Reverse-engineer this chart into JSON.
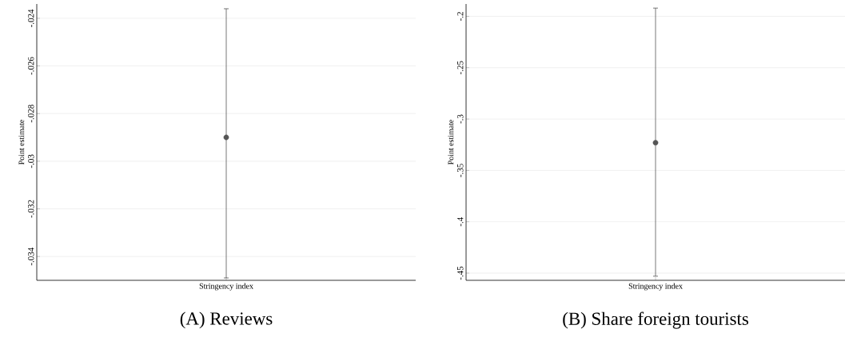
{
  "chart_data": [
    {
      "type": "scatter",
      "title": "(A) Reviews",
      "ylabel": "Point estimate",
      "categories": [
        "Stringency index"
      ],
      "values": [
        -0.029
      ],
      "errors": [
        [
          -0.0349,
          -0.0236
        ]
      ],
      "color": "#555555",
      "marker": "circle",
      "grid": "y",
      "ylim": [
        -0.035,
        -0.0234
      ],
      "yticks": [
        {
          "value": -0.034,
          "label": "-.034"
        },
        {
          "value": -0.032,
          "label": "-.032"
        },
        {
          "value": -0.03,
          "label": "-.03"
        },
        {
          "value": -0.028,
          "label": "-.028"
        },
        {
          "value": -0.026,
          "label": "-.026"
        },
        {
          "value": -0.024,
          "label": "-.024"
        }
      ]
    },
    {
      "type": "scatter",
      "title": "(B) Share foreign tourists",
      "ylabel": "Point estimate",
      "categories": [
        "Stringency index"
      ],
      "values": [
        -0.323
      ],
      "errors": [
        [
          -0.453,
          -0.192
        ]
      ],
      "color": "#555555",
      "marker": "circle",
      "grid": "y",
      "ylim": [
        -0.457,
        -0.188
      ],
      "yticks": [
        {
          "value": -0.45,
          "label": "-.45"
        },
        {
          "value": -0.4,
          "label": "-.4"
        },
        {
          "value": -0.35,
          "label": "-.35"
        },
        {
          "value": -0.3,
          "label": "-.3"
        },
        {
          "value": -0.25,
          "label": "-.25"
        },
        {
          "value": -0.2,
          "label": "-.2"
        }
      ]
    }
  ]
}
